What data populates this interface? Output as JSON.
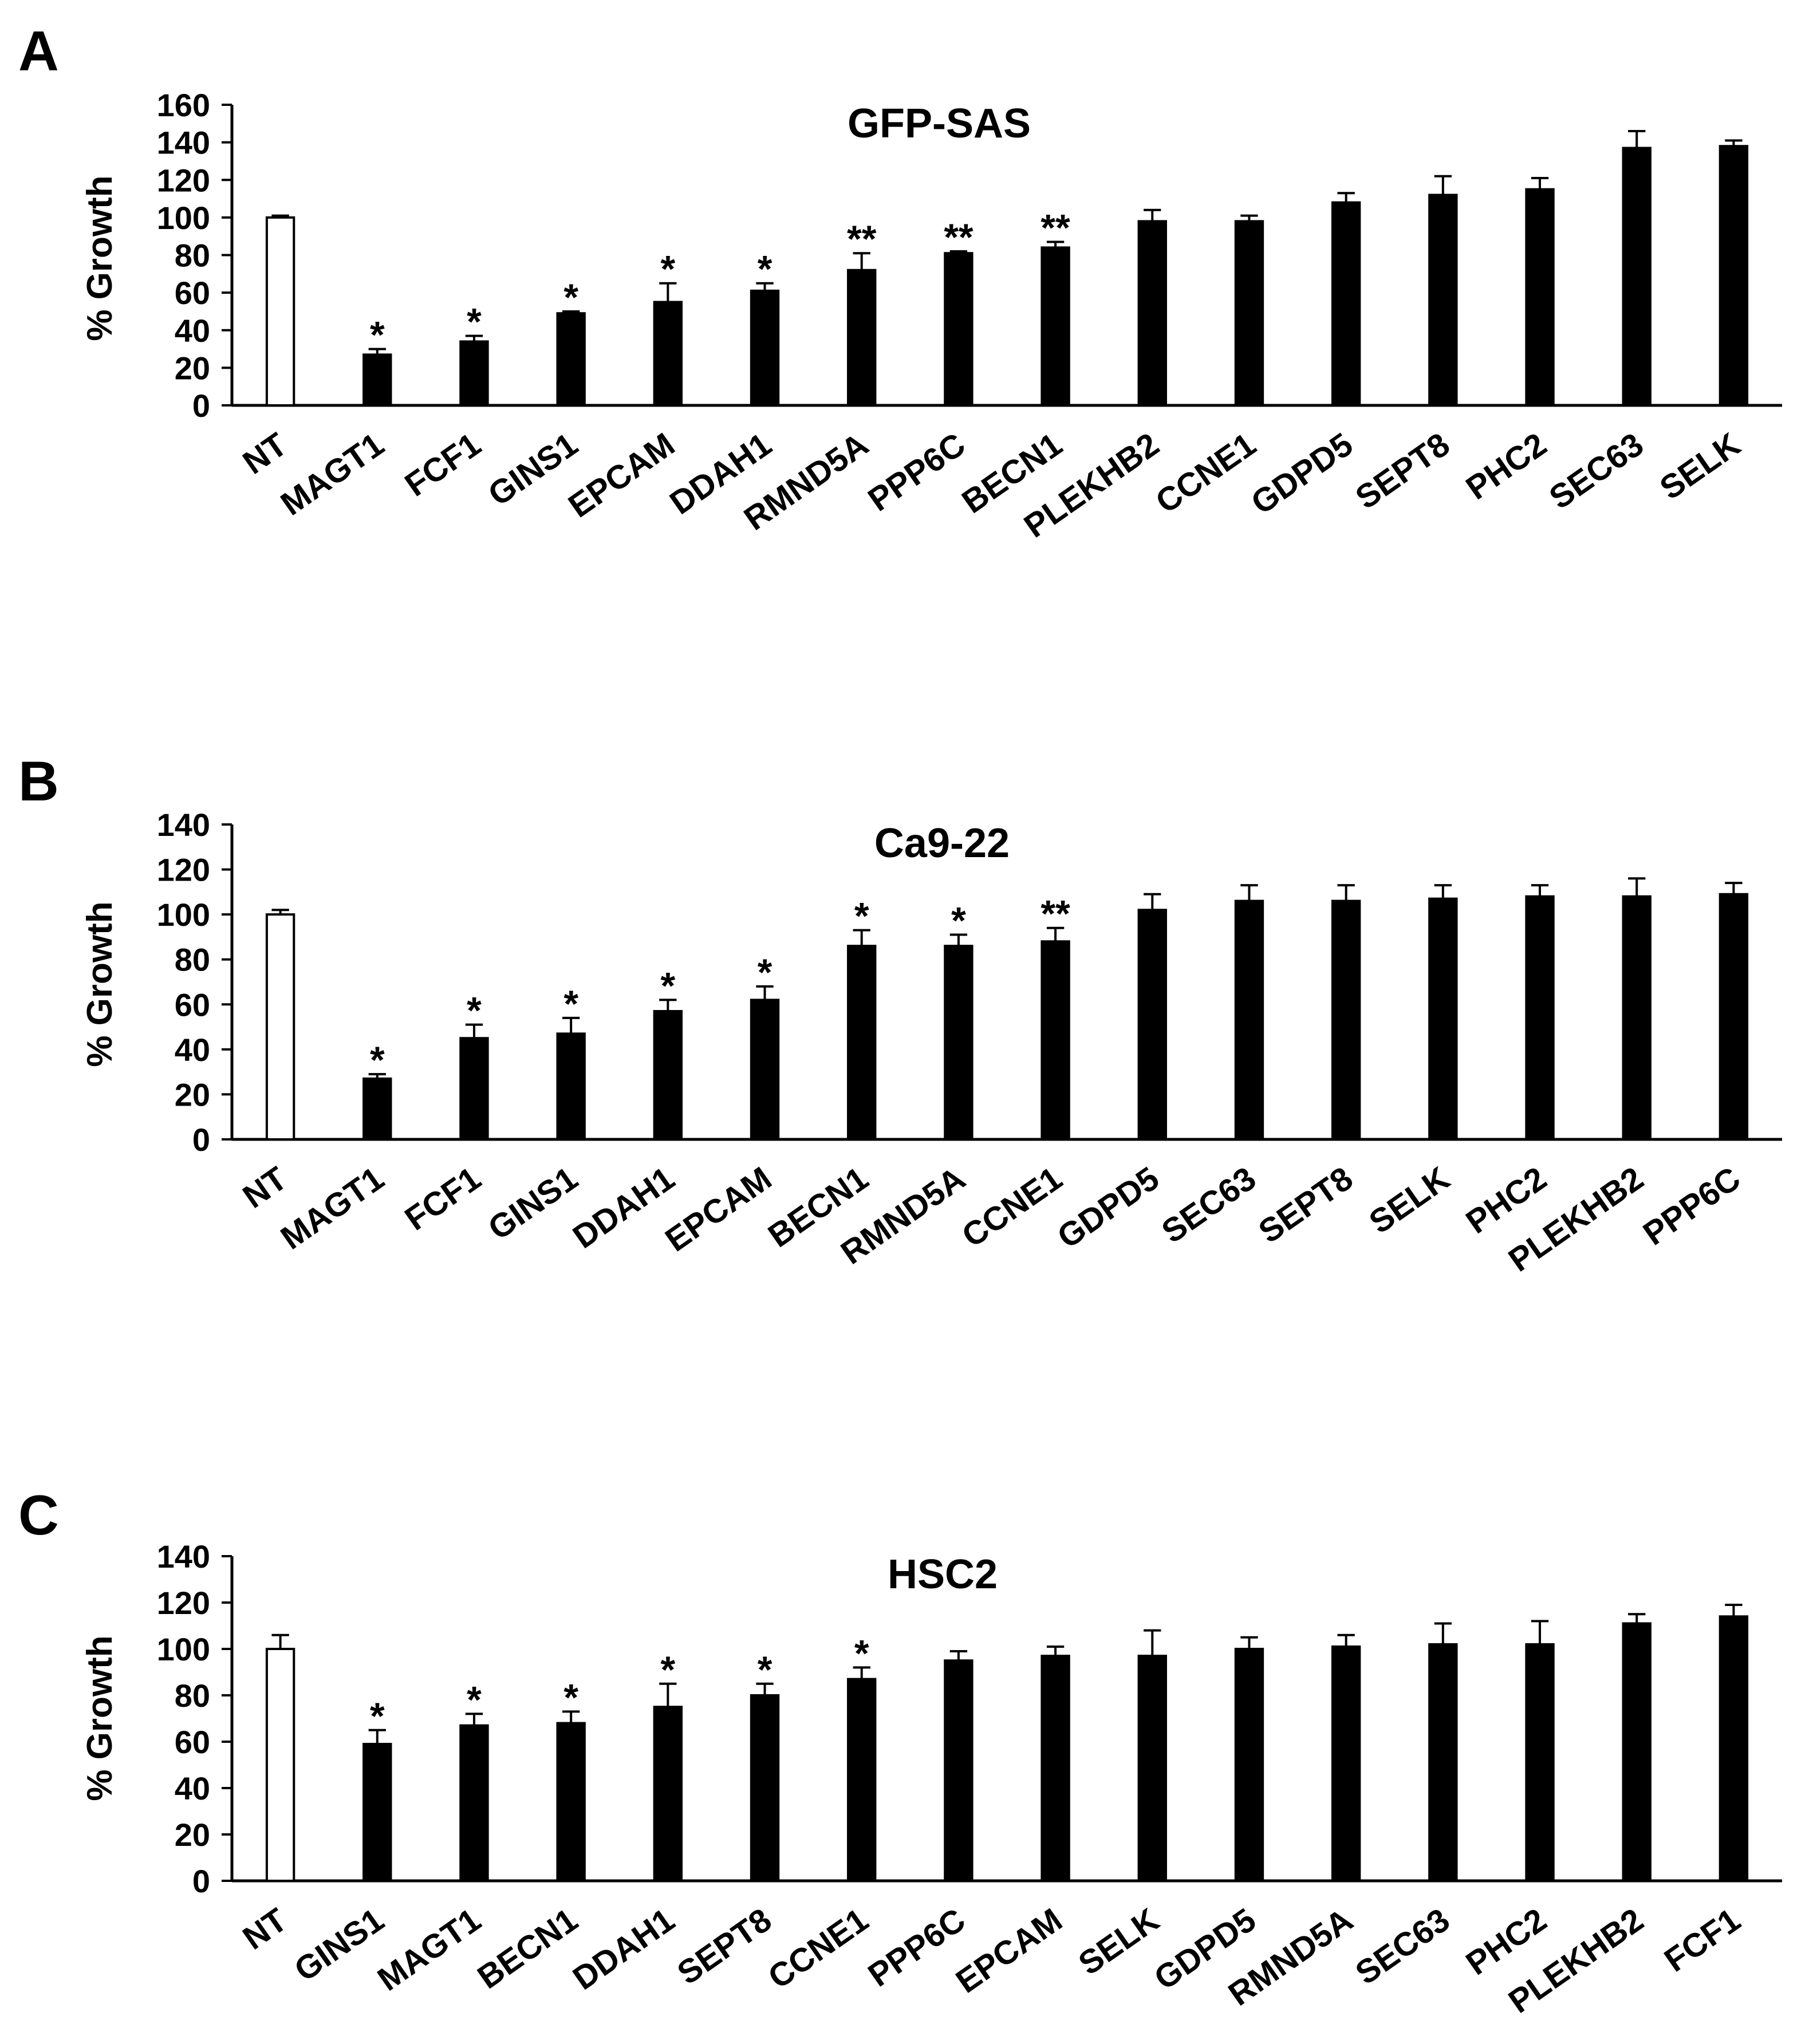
{
  "chart_data": [
    {
      "panel": "A",
      "type": "bar",
      "title": "GFP-SAS",
      "xlabel": "",
      "ylabel": "% Growth",
      "ylim": [
        0,
        160
      ],
      "yticks": [
        0,
        20,
        40,
        60,
        80,
        100,
        120,
        140,
        160
      ],
      "categories": [
        "NT",
        "MAGT1",
        "FCF1",
        "GINS1",
        "EPCAM",
        "DDAH1",
        "RMND5A",
        "PPP6C",
        "BECN1",
        "PLEKHB2",
        "CCNE1",
        "GDPD5",
        "SEPT8",
        "PHC2",
        "SEC63",
        "SELK"
      ],
      "values": [
        100,
        27,
        34,
        49,
        55,
        61,
        72,
        81,
        84,
        98,
        98,
        108,
        112,
        115,
        137,
        138
      ],
      "errors": [
        1,
        3,
        3,
        1,
        10,
        4,
        9,
        1,
        3,
        6,
        3,
        5,
        10,
        6,
        9,
        3
      ],
      "significance": [
        "",
        "*",
        "*",
        "*",
        "*",
        "*",
        "**",
        "**",
        "**",
        "",
        "",
        "",
        "",
        "",
        "",
        ""
      ],
      "bar_colors": [
        "#ffffff",
        "#000000",
        "#000000",
        "#000000",
        "#000000",
        "#000000",
        "#000000",
        "#000000",
        "#000000",
        "#000000",
        "#000000",
        "#000000",
        "#000000",
        "#000000",
        "#000000",
        "#000000"
      ],
      "grid": false
    },
    {
      "panel": "B",
      "type": "bar",
      "title": "Ca9-22",
      "xlabel": "",
      "ylabel": "% Growth",
      "ylim": [
        0,
        140
      ],
      "yticks": [
        0,
        20,
        40,
        60,
        80,
        100,
        120,
        140
      ],
      "categories": [
        "NT",
        "MAGT1",
        "FCF1",
        "GINS1",
        "DDAH1",
        "EPCAM",
        "BECN1",
        "RMND5A",
        "CCNE1",
        "GDPD5",
        "SEC63",
        "SEPT8",
        "SELK",
        "PHC2",
        "PLEKHB2",
        "PPP6C"
      ],
      "values": [
        100,
        27,
        45,
        47,
        57,
        62,
        86,
        86,
        88,
        102,
        106,
        106,
        107,
        108,
        108,
        109
      ],
      "errors": [
        2,
        2,
        6,
        7,
        5,
        6,
        7,
        5,
        6,
        7,
        7,
        7,
        6,
        5,
        8,
        5
      ],
      "significance": [
        "",
        "*",
        "*",
        "*",
        "*",
        "*",
        "*",
        "*",
        "**",
        "",
        "",
        "",
        "",
        "",
        "",
        ""
      ],
      "bar_colors": [
        "#ffffff",
        "#000000",
        "#000000",
        "#000000",
        "#000000",
        "#000000",
        "#000000",
        "#000000",
        "#000000",
        "#000000",
        "#000000",
        "#000000",
        "#000000",
        "#000000",
        "#000000",
        "#000000"
      ],
      "grid": false
    },
    {
      "panel": "C",
      "type": "bar",
      "title": "HSC2",
      "xlabel": "",
      "ylabel": "% Growth",
      "ylim": [
        0,
        140
      ],
      "yticks": [
        0,
        20,
        40,
        60,
        80,
        100,
        120,
        140
      ],
      "categories": [
        "NT",
        "GINS1",
        "MAGT1",
        "BECN1",
        "DDAH1",
        "SEPT8",
        "CCNE1",
        "PPP6C",
        "EPCAM",
        "SELK",
        "GDPD5",
        "RMND5A",
        "SEC63",
        "PHC2",
        "PLEKHB2",
        "FCF1"
      ],
      "values": [
        100,
        59,
        67,
        68,
        75,
        80,
        87,
        95,
        97,
        97,
        100,
        101,
        102,
        102,
        111,
        114
      ],
      "errors": [
        6,
        6,
        5,
        5,
        10,
        5,
        5,
        4,
        4,
        11,
        5,
        5,
        9,
        10,
        4,
        5
      ],
      "significance": [
        "",
        "*",
        "*",
        "*",
        "*",
        "*",
        "*",
        "",
        "",
        "",
        "",
        "",
        "",
        "",
        "",
        ""
      ],
      "bar_colors": [
        "#ffffff",
        "#000000",
        "#000000",
        "#000000",
        "#000000",
        "#000000",
        "#000000",
        "#000000",
        "#000000",
        "#000000",
        "#000000",
        "#000000",
        "#000000",
        "#000000",
        "#000000",
        "#000000"
      ],
      "grid": false
    }
  ]
}
